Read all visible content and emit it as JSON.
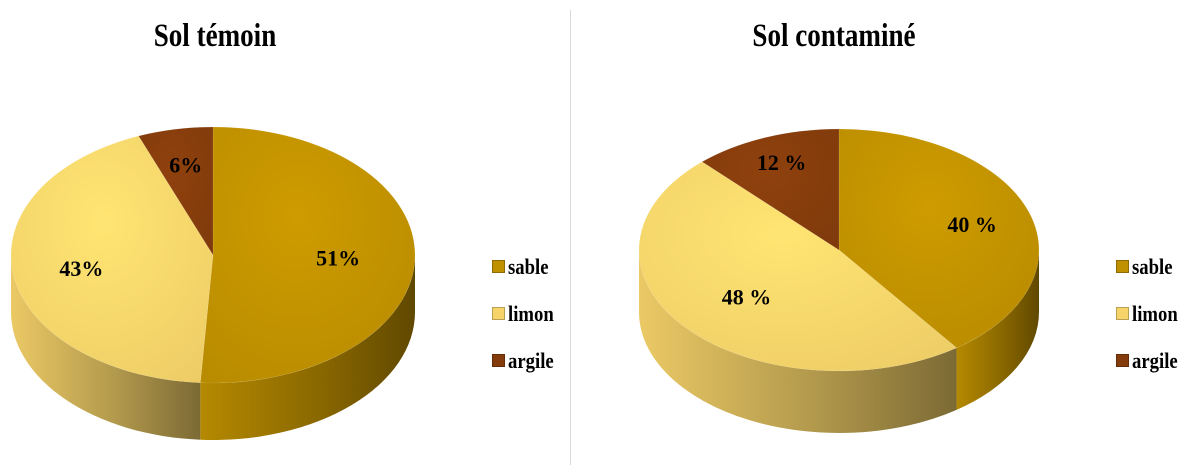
{
  "colors": {
    "sable": "#bf9000",
    "limon": "#f7d46a",
    "argile": "#843c0c"
  },
  "chart_data": [
    {
      "type": "pie",
      "title": "Sol témoin",
      "categories": [
        "sable",
        "limon",
        "argile"
      ],
      "values": [
        51,
        43,
        6
      ],
      "data_labels": [
        "51%",
        "43%",
        "6%"
      ],
      "legend": {
        "position": "right",
        "entries": [
          "sable",
          "limon",
          "argile"
        ]
      },
      "style": "3d"
    },
    {
      "type": "pie",
      "title": "Sol contaminé",
      "categories": [
        "sable",
        "limon",
        "argile"
      ],
      "values": [
        40,
        48,
        12
      ],
      "data_labels": [
        "40 %",
        "48 %",
        "12 %"
      ],
      "legend": {
        "position": "right",
        "entries": [
          "sable",
          "limon",
          "argile"
        ]
      },
      "style": "3d"
    }
  ]
}
